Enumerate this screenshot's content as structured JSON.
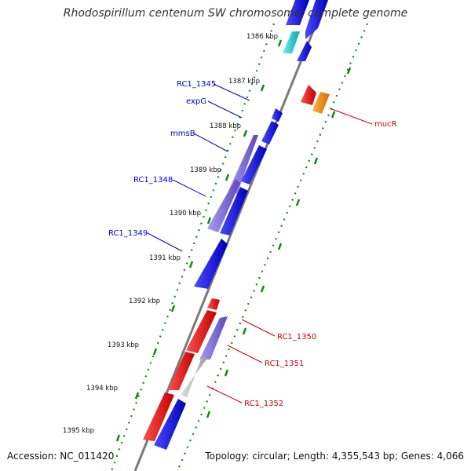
{
  "title": "Rhodospirillum centenum SW chromosome, complete genome",
  "footer": {
    "accession": "Accession: NC_011420",
    "summary": "Topology: circular; Length: 4,355,543 bp; Genes: 4,066"
  },
  "colors": {
    "backbone": "#7a7a7a",
    "tick": "#118811",
    "left_label": "#0000cc",
    "right_label": "#cc0000",
    "blue": "#1010e8",
    "purple": "#7a6ad8",
    "red": "#ee1010",
    "gray": "#b8b8b8",
    "orange": "#f08c00",
    "cyan": "#10c8c8"
  },
  "ticks": [
    {
      "label": "1386 kbp"
    },
    {
      "label": "1387 kbp"
    },
    {
      "label": "1388 kbp"
    },
    {
      "label": "1389 kbp"
    },
    {
      "label": "1390 kbp"
    },
    {
      "label": "1391 kbp"
    },
    {
      "label": "1392 kbp"
    },
    {
      "label": "1393 kbp"
    },
    {
      "label": "1394 kbp"
    },
    {
      "label": "1395 kbp"
    }
  ],
  "left_labels": [
    {
      "name": "RC1_1345"
    },
    {
      "name": "expG"
    },
    {
      "name": "mmsB"
    },
    {
      "name": "RC1_1348"
    },
    {
      "name": "RC1_1349"
    }
  ],
  "right_labels": [
    {
      "name": "mucR"
    },
    {
      "name": "RC1_1350"
    },
    {
      "name": "RC1_1351"
    },
    {
      "name": "RC1_1352"
    }
  ]
}
